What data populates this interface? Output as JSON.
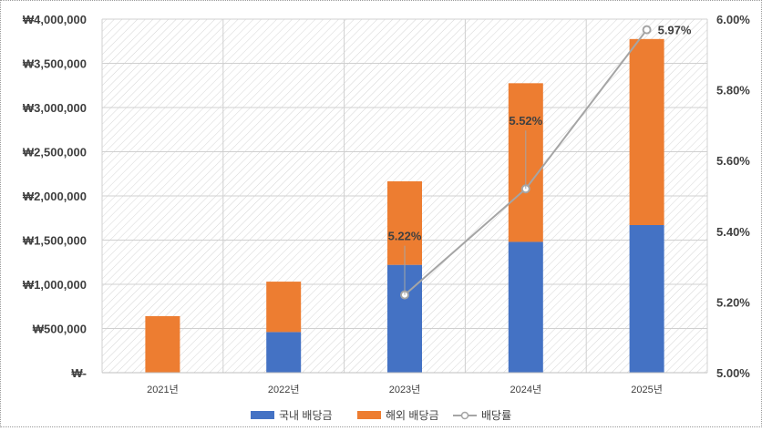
{
  "chart_data": {
    "type": "bar",
    "stacked": true,
    "categories": [
      "2021년",
      "2022년",
      "2023년",
      "2024년",
      "2025년"
    ],
    "series": [
      {
        "name": "국내 배당금",
        "type": "bar",
        "axis": "left",
        "color": "#4472C4",
        "values": [
          0,
          460000,
          1220000,
          1480000,
          1670000
        ]
      },
      {
        "name": "해외 배당금",
        "type": "bar",
        "axis": "left",
        "color": "#ED7D31",
        "values": [
          640000,
          570000,
          945000,
          1795000,
          2105000
        ]
      },
      {
        "name": "배당률",
        "type": "line",
        "axis": "right",
        "color": "#A5A5A5",
        "values": [
          null,
          null,
          5.22,
          5.52,
          5.97
        ]
      }
    ],
    "data_labels": [
      "5.22%",
      "5.52%",
      "5.97%"
    ],
    "ylim_left": [
      0,
      4000000
    ],
    "ylim_right": [
      5.0,
      6.0
    ],
    "yticks_left": [
      "₩-",
      "₩500,000",
      "₩1,000,000",
      "₩1,500,000",
      "₩2,000,000",
      "₩2,500,000",
      "₩3,000,000",
      "₩3,500,000",
      "₩4,000,000"
    ],
    "yticks_right": [
      "5.00%",
      "5.20%",
      "5.40%",
      "5.60%",
      "5.80%",
      "6.00%"
    ],
    "grid": true,
    "legend": "bottom"
  }
}
